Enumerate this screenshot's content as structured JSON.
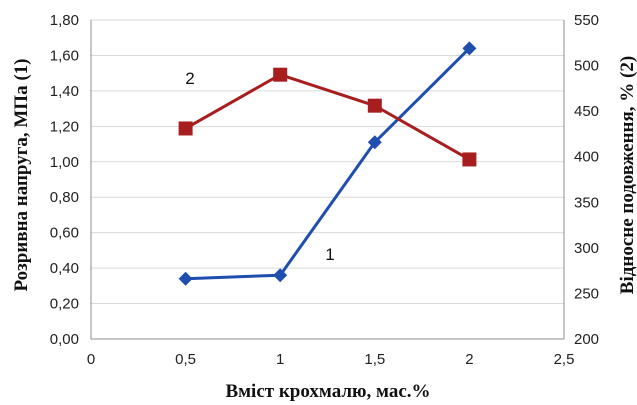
{
  "chart_data": {
    "type": "line",
    "x_axis": {
      "label": "Вміст крохмалю, мас.%",
      "range": [
        0,
        2.5
      ],
      "ticks": [
        0,
        0.5,
        1,
        1.5,
        2,
        2.5
      ],
      "tick_labels": [
        "0",
        "0,5",
        "1",
        "1,5",
        "2",
        "2,5"
      ]
    },
    "y_axis_left": {
      "label": "Розривна напруга, МПа (1)",
      "range": [
        0,
        1.8
      ],
      "ticks": [
        0,
        0.2,
        0.4,
        0.6,
        0.8,
        1.0,
        1.2,
        1.4,
        1.6,
        1.8
      ],
      "tick_labels": [
        "0,00",
        "0,20",
        "0,40",
        "0,60",
        "0,80",
        "1,00",
        "1,20",
        "1,40",
        "1,60",
        "1,80"
      ]
    },
    "y_axis_right": {
      "label": "Відносне подовження, % (2)",
      "range": [
        200,
        550
      ],
      "ticks": [
        200,
        250,
        300,
        350,
        400,
        450,
        500,
        550
      ],
      "tick_labels": [
        "200",
        "250",
        "300",
        "350",
        "400",
        "450",
        "500",
        "550"
      ]
    },
    "series": [
      {
        "tag": "1",
        "axis": "left",
        "color": "#1F4EAE",
        "marker": "diamond",
        "x": [
          0.5,
          1,
          1.5,
          2
        ],
        "y": [
          0.34,
          0.36,
          1.11,
          1.64
        ]
      },
      {
        "tag": "2",
        "axis": "right",
        "color": "#A81E1E",
        "marker": "square",
        "x": [
          0.5,
          1,
          1.5,
          2
        ],
        "y": [
          431,
          490,
          456,
          397
        ]
      }
    ],
    "grid": "horizontal",
    "legend": "none"
  }
}
